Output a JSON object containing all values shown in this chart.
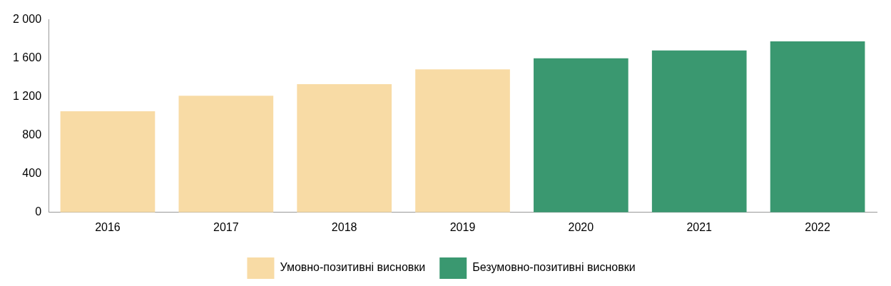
{
  "chart_data": {
    "type": "bar",
    "categories": [
      "2016",
      "2017",
      "2018",
      "2019",
      "2020",
      "2021",
      "2022"
    ],
    "stacked": true,
    "series": [
      {
        "name": "Умовно-позитивні висновки",
        "color": "#f8dba5",
        "values": [
          1050,
          1210,
          1330,
          1485,
          null,
          null,
          null
        ]
      },
      {
        "name": "Безумовно-позитивні висновки",
        "color": "#3a9870",
        "values": [
          null,
          null,
          null,
          null,
          1600,
          1680,
          1775
        ]
      }
    ],
    "ylim": [
      0,
      2000
    ],
    "yticks": [
      0,
      400,
      800,
      {
        "value": 1200,
        "label": "1 200"
      },
      {
        "value": 1600,
        "label": "1 600"
      },
      {
        "value": 2000,
        "label": "2 000"
      }
    ],
    "grid": false,
    "legend": "bottom"
  }
}
